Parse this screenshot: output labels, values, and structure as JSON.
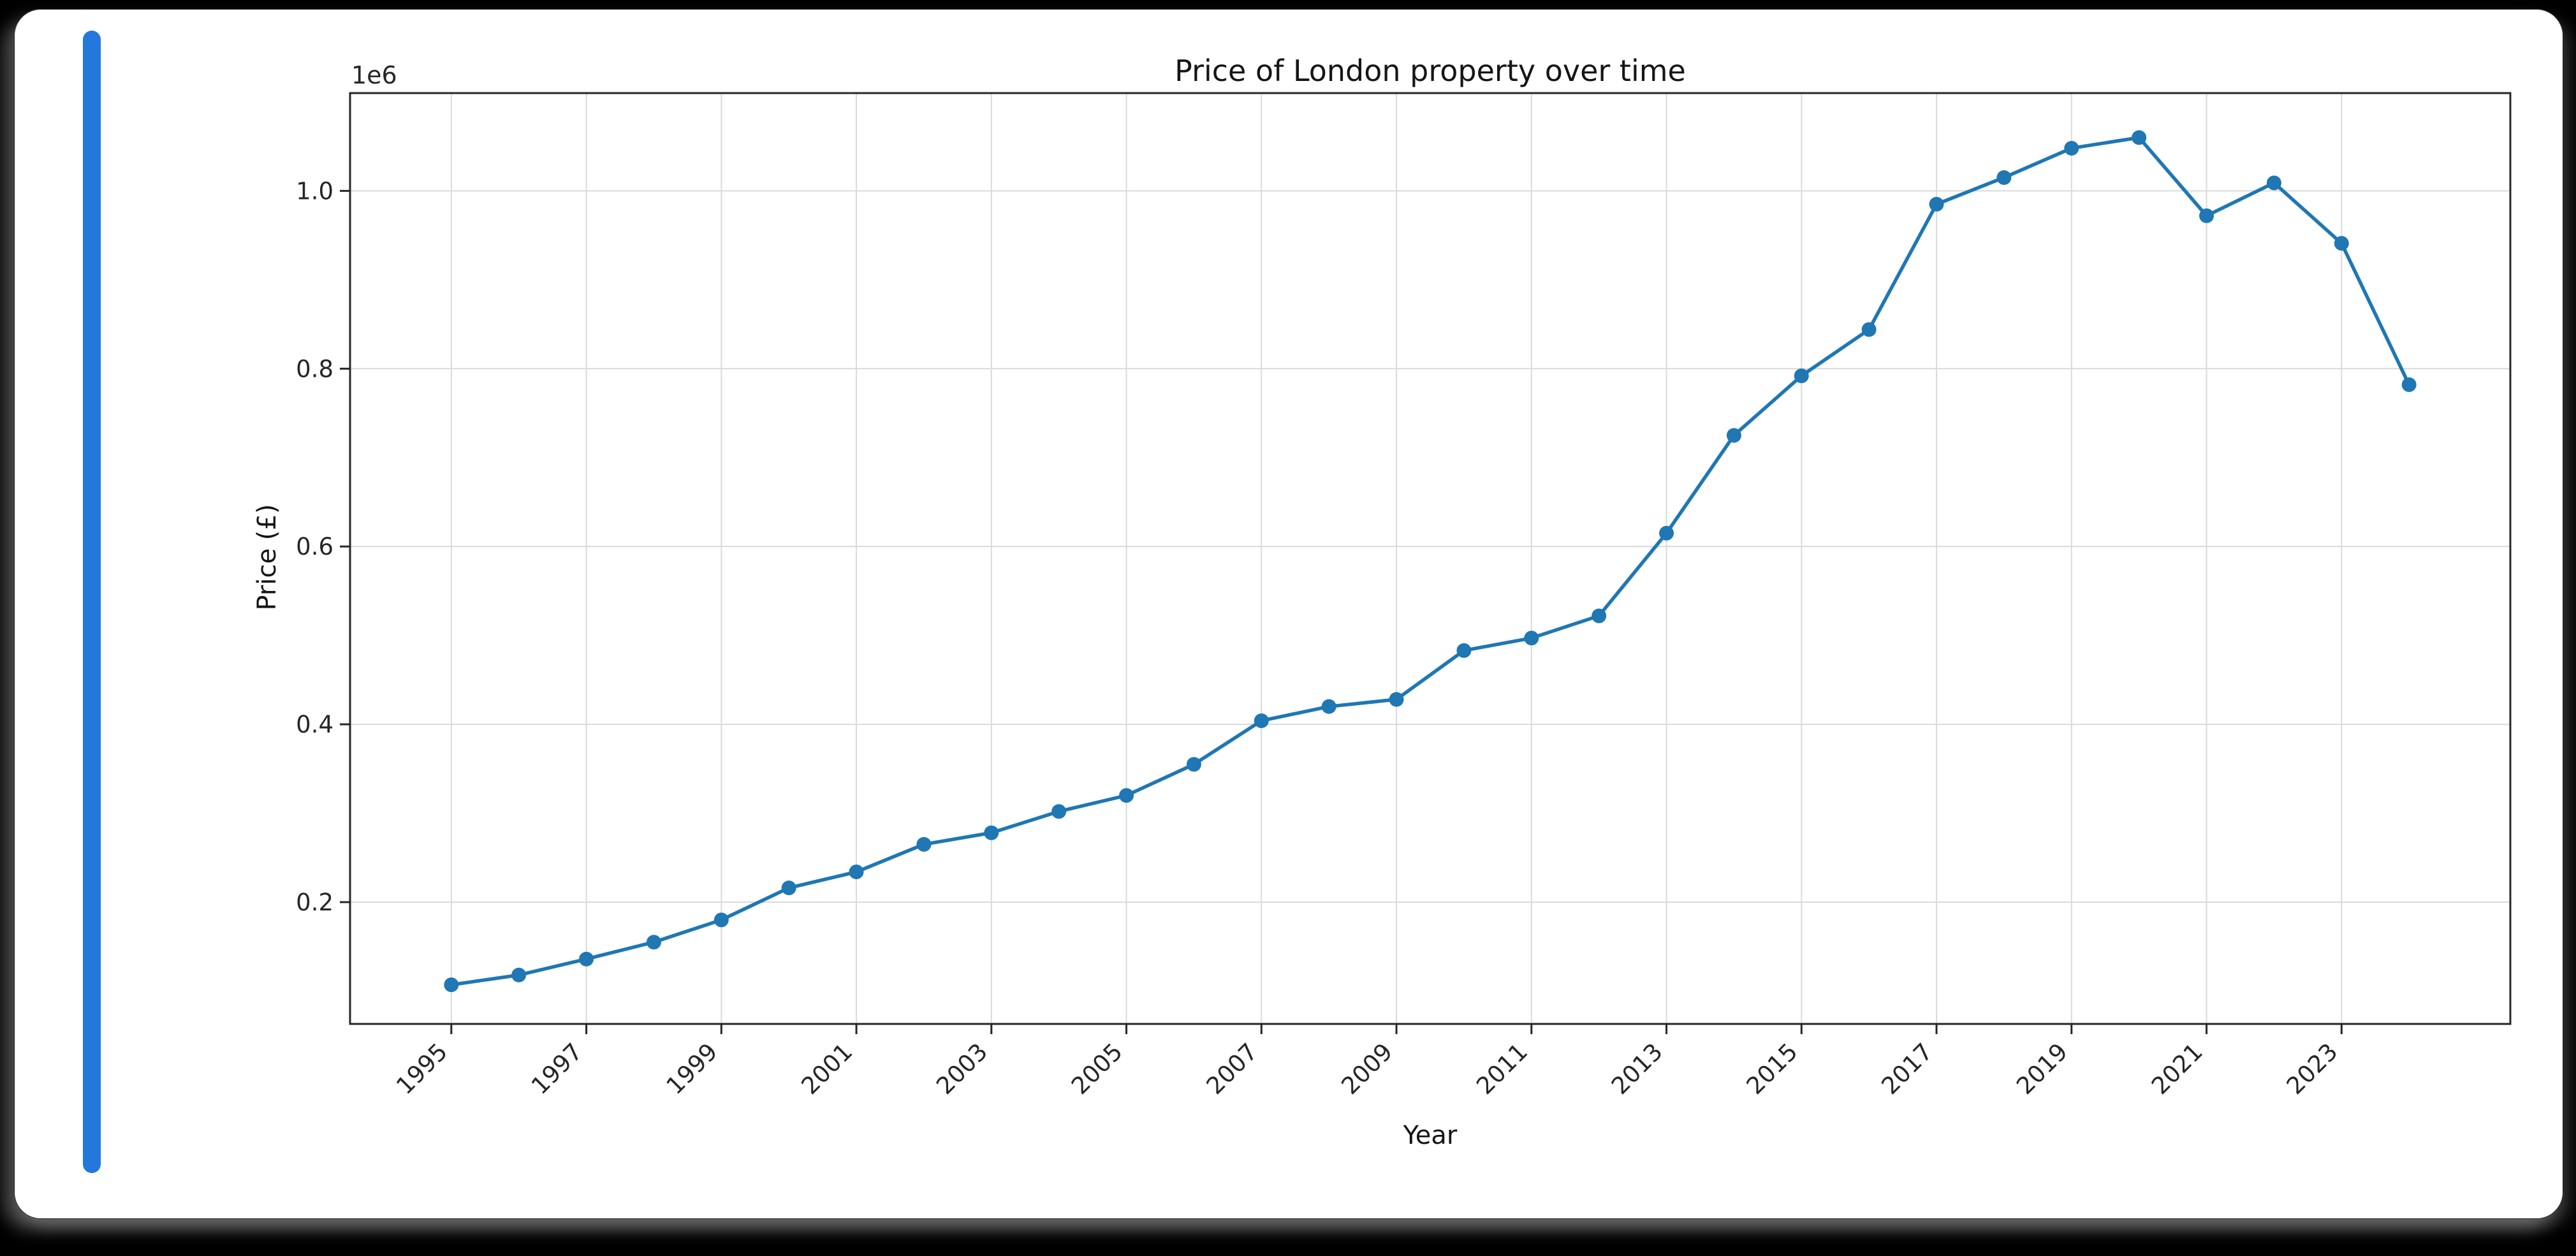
{
  "window": {
    "background": "#000000",
    "card_background": "#ffffff"
  },
  "accent_bar": {
    "color": "#2478DC"
  },
  "chart_data": {
    "type": "line",
    "title": "Price of London property over time",
    "xlabel": "Year",
    "ylabel": "Price (£)",
    "offset_label": "1e6",
    "x": [
      1995,
      1996,
      1997,
      1998,
      1999,
      2000,
      2001,
      2002,
      2003,
      2004,
      2005,
      2006,
      2007,
      2008,
      2009,
      2010,
      2011,
      2012,
      2013,
      2014,
      2015,
      2016,
      2017,
      2018,
      2019,
      2020,
      2021,
      2022,
      2023,
      2024
    ],
    "series": [
      {
        "name": "price",
        "values": [
          107000,
          118000,
          136000,
          155000,
          180000,
          216000,
          234000,
          265000,
          278000,
          302000,
          320000,
          355000,
          404000,
          420000,
          428000,
          483000,
          497000,
          522000,
          615000,
          725000,
          792000,
          844000,
          985000,
          1015000,
          1048000,
          1060000,
          972000,
          1009000,
          941000,
          782000
        ]
      }
    ],
    "x_ticks": {
      "values": [
        1995,
        1997,
        1999,
        2001,
        2003,
        2005,
        2007,
        2009,
        2011,
        2013,
        2015,
        2017,
        2019,
        2021,
        2023
      ],
      "labels": [
        "1995",
        "1997",
        "1999",
        "2001",
        "2003",
        "2005",
        "2007",
        "2009",
        "2011",
        "2013",
        "2015",
        "2017",
        "2019",
        "2021",
        "2023"
      ]
    },
    "y_ticks": {
      "values": [
        200000,
        400000,
        600000,
        800000,
        1000000
      ],
      "labels": [
        "0.2",
        "0.4",
        "0.6",
        "0.8",
        "1.0"
      ]
    },
    "xlim": [
      1993.5,
      2025.5
    ],
    "ylim": [
      63000,
      1110000
    ],
    "grid": true,
    "legend": "none",
    "line_color": "#1f77b4",
    "marker_color": "#1f77b4",
    "grid_color": "#dadada",
    "spine_color": "#262626",
    "tick_label_color": "#262626"
  }
}
